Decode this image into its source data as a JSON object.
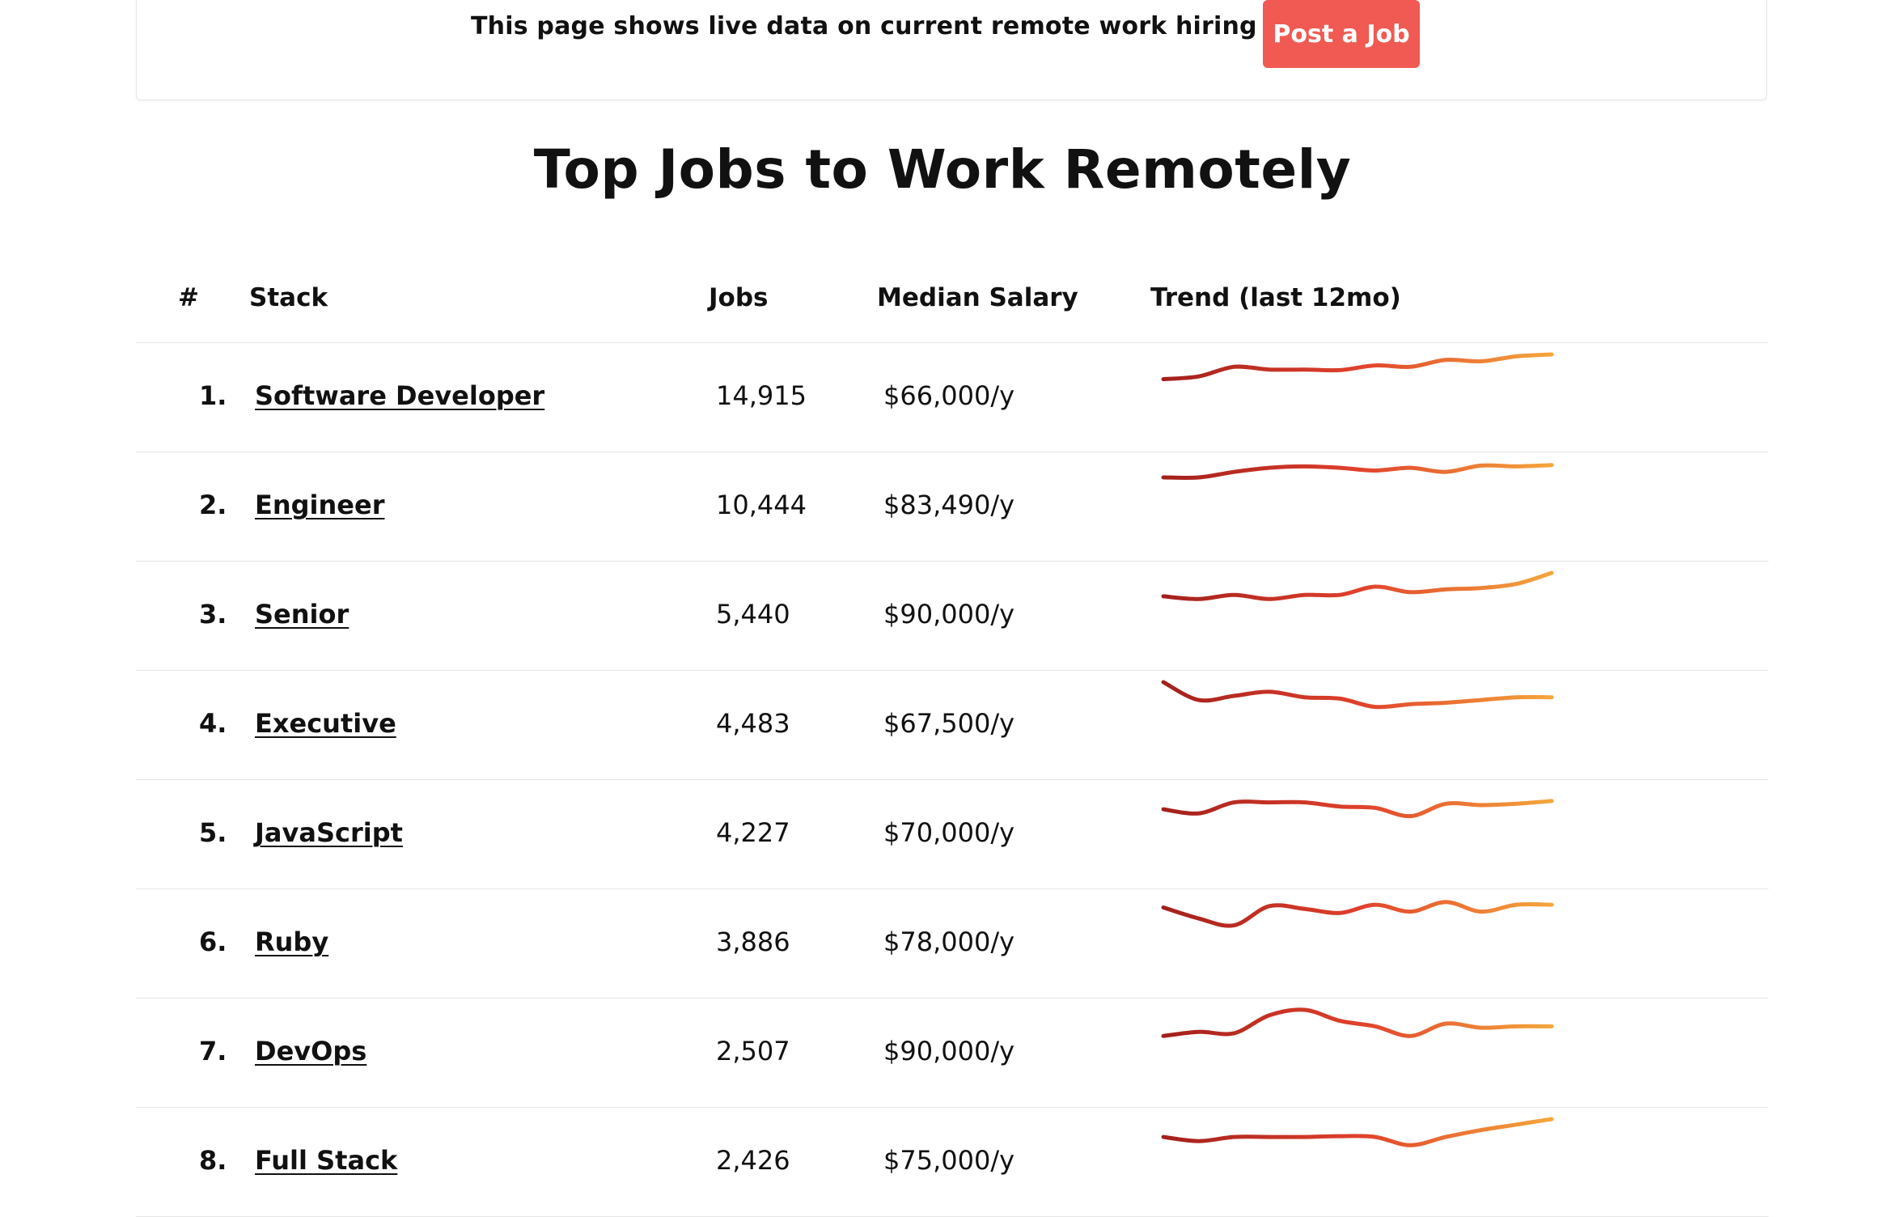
{
  "banner": {
    "text": "This page shows live data on current remote work hiring trends",
    "button_label": "Post a Job"
  },
  "page_title": "Top Jobs to Work Remotely",
  "table": {
    "headers": {
      "rank": "#",
      "stack": "Stack",
      "jobs": "Jobs",
      "salary": "Median Salary",
      "trend": "Trend (last 12mo)"
    },
    "trend_colors": [
      "#a3201c",
      "#e0402c",
      "#f5a63c"
    ],
    "rows": [
      {
        "rank": "1.",
        "stack": "Software Developer",
        "jobs": "14,915",
        "salary": "$66,000/y",
        "trend": [
          0.1,
          0.2,
          0.55,
          0.45,
          0.45,
          0.43,
          0.6,
          0.55,
          0.8,
          0.75,
          0.93,
          1.0
        ]
      },
      {
        "rank": "2.",
        "stack": "Engineer",
        "jobs": "10,444",
        "salary": "$83,490/y",
        "trend": [
          0.5,
          0.5,
          0.7,
          0.85,
          0.9,
          0.85,
          0.75,
          0.85,
          0.7,
          0.93,
          0.9,
          0.95
        ]
      },
      {
        "rank": "3.",
        "stack": "Senior",
        "jobs": "5,440",
        "salary": "$90,000/y",
        "trend": [
          0.15,
          0.05,
          0.2,
          0.05,
          0.2,
          0.2,
          0.5,
          0.3,
          0.4,
          0.45,
          0.6,
          1.0
        ]
      },
      {
        "rank": "4.",
        "stack": "Executive",
        "jobs": "4,483",
        "salary": "$67,500/y",
        "trend": [
          1.0,
          0.35,
          0.5,
          0.65,
          0.45,
          0.4,
          0.1,
          0.2,
          0.25,
          0.35,
          0.45,
          0.45
        ]
      },
      {
        "rank": "5.",
        "stack": "JavaScript",
        "jobs": "4,227",
        "salary": "$70,000/y",
        "trend": [
          0.35,
          0.2,
          0.6,
          0.6,
          0.6,
          0.45,
          0.4,
          0.1,
          0.55,
          0.5,
          0.55,
          0.65
        ]
      },
      {
        "rank": "6.",
        "stack": "Ruby",
        "jobs": "3,886",
        "salary": "$78,000/y",
        "trend": [
          0.75,
          0.35,
          0.1,
          0.8,
          0.7,
          0.55,
          0.85,
          0.6,
          0.95,
          0.6,
          0.85,
          0.85
        ]
      },
      {
        "rank": "7.",
        "stack": "DevOps",
        "jobs": "2,507",
        "salary": "$90,000/y",
        "trend": [
          0.05,
          0.2,
          0.15,
          0.8,
          1.0,
          0.6,
          0.4,
          0.05,
          0.5,
          0.35,
          0.4,
          0.4
        ]
      },
      {
        "rank": "8.",
        "stack": "Full Stack",
        "jobs": "2,426",
        "salary": "$75,000/y",
        "trend": [
          0.35,
          0.2,
          0.35,
          0.35,
          0.35,
          0.38,
          0.35,
          0.05,
          0.35,
          0.6,
          0.8,
          1.0
        ]
      }
    ]
  }
}
